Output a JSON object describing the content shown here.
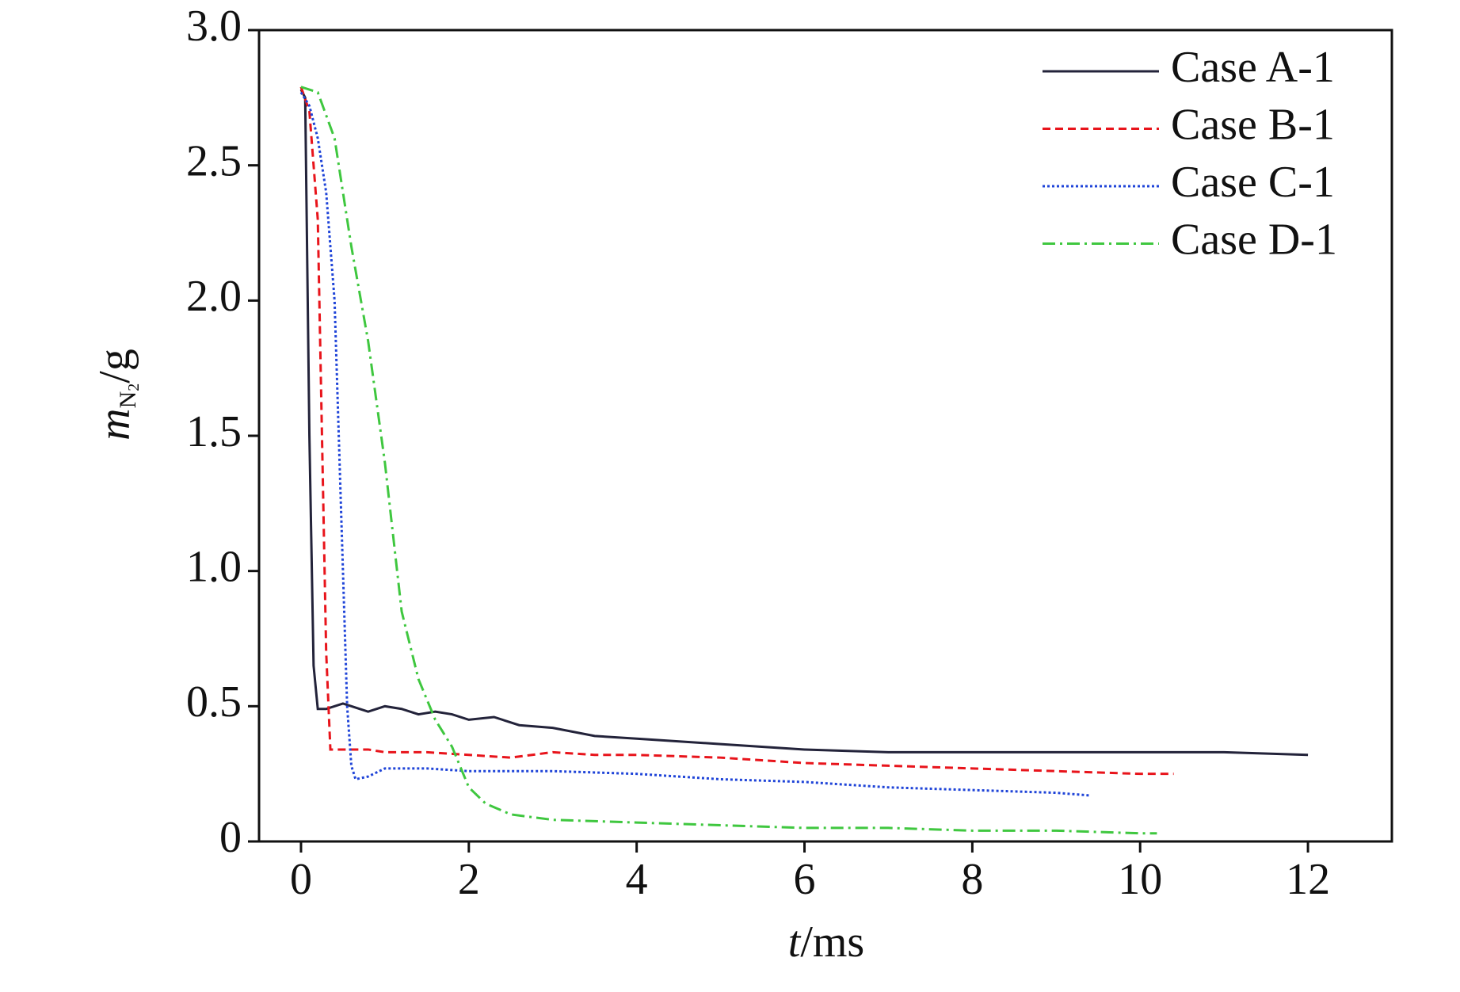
{
  "chart_data": {
    "type": "line",
    "x_label": {
      "symbol": "t",
      "unit": "/ms"
    },
    "y_label": {
      "symbol": "m",
      "subscript": "N",
      "subsubscript": "2",
      "unit": "/g"
    },
    "xlim": [
      -0.5,
      13.0
    ],
    "xticks": [
      0,
      2,
      4,
      6,
      8,
      10,
      12
    ],
    "ylim": [
      0,
      3
    ],
    "yticks": [
      0,
      0.5,
      {
        "value": 1,
        "label": "1.0"
      },
      1.5,
      {
        "value": 2,
        "label": "2.0"
      },
      2.5,
      {
        "value": 3,
        "label": "3.0"
      }
    ],
    "legend": "upper right",
    "grid": false,
    "series": [
      {
        "name": "Case A-1",
        "color": "#23233a",
        "dash": "solid",
        "x": [
          0,
          0.05,
          0.1,
          0.15,
          0.2,
          0.3,
          0.5,
          0.6,
          0.8,
          1,
          1.2,
          1.4,
          1.6,
          1.8,
          2,
          2.3,
          2.6,
          3,
          3.5,
          4,
          5,
          6,
          7,
          8,
          9,
          10,
          11,
          12
        ],
        "values": [
          2.78,
          2.75,
          1.5,
          0.65,
          0.49,
          0.49,
          0.51,
          0.5,
          0.48,
          0.5,
          0.49,
          0.47,
          0.48,
          0.47,
          0.45,
          0.46,
          0.43,
          0.42,
          0.39,
          0.38,
          0.36,
          0.34,
          0.33,
          0.33,
          0.33,
          0.33,
          0.33,
          0.32
        ]
      },
      {
        "name": "Case B-1",
        "color": "#e8141b",
        "dash": "dashed",
        "x": [
          0,
          0.1,
          0.2,
          0.25,
          0.3,
          0.35,
          0.5,
          0.8,
          1,
          1.5,
          2,
          2.5,
          3,
          3.5,
          4,
          5,
          6,
          7,
          8,
          9,
          10,
          10.4
        ],
        "values": [
          2.79,
          2.7,
          2.3,
          1.5,
          0.7,
          0.34,
          0.34,
          0.34,
          0.33,
          0.33,
          0.32,
          0.31,
          0.33,
          0.32,
          0.32,
          0.31,
          0.29,
          0.28,
          0.27,
          0.26,
          0.25,
          0.25
        ]
      },
      {
        "name": "Case C-1",
        "color": "#1f44d8",
        "dash": "dotted",
        "x": [
          0,
          0.1,
          0.2,
          0.3,
          0.4,
          0.5,
          0.55,
          0.6,
          0.65,
          0.8,
          1,
          1.2,
          1.5,
          2,
          3,
          4,
          5,
          6,
          7,
          8,
          9,
          9.4
        ],
        "values": [
          2.77,
          2.72,
          2.6,
          2.4,
          2.0,
          1.0,
          0.5,
          0.28,
          0.23,
          0.24,
          0.27,
          0.27,
          0.27,
          0.26,
          0.26,
          0.25,
          0.23,
          0.22,
          0.2,
          0.19,
          0.18,
          0.17
        ]
      },
      {
        "name": "Case D-1",
        "color": "#3fc73f",
        "dash": "dashdot",
        "x": [
          0,
          0.2,
          0.4,
          0.6,
          0.8,
          1,
          1.2,
          1.4,
          1.6,
          1.8,
          2,
          2.2,
          2.5,
          3,
          4,
          5,
          6,
          7,
          8,
          9,
          10,
          10.2
        ],
        "values": [
          2.79,
          2.77,
          2.6,
          2.2,
          1.85,
          1.4,
          0.85,
          0.6,
          0.45,
          0.35,
          0.2,
          0.14,
          0.1,
          0.08,
          0.07,
          0.06,
          0.05,
          0.05,
          0.04,
          0.04,
          0.03,
          0.03
        ]
      }
    ]
  }
}
